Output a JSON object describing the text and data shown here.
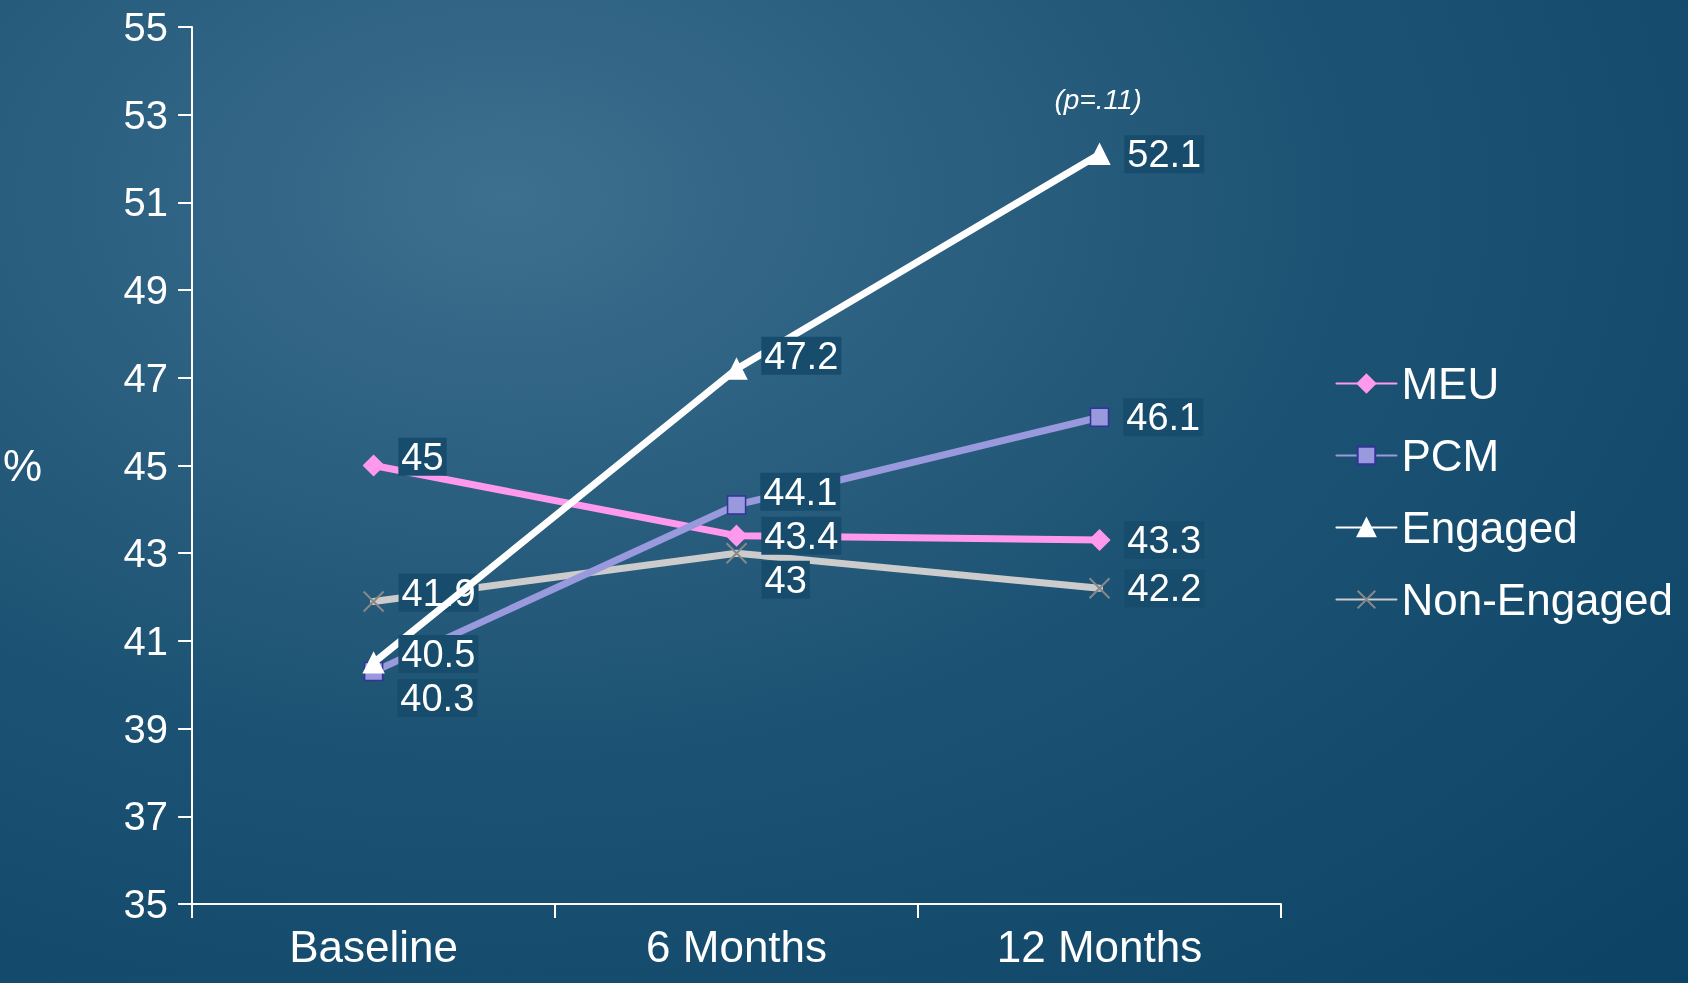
{
  "chart_data": {
    "type": "line",
    "ylabel": "%",
    "categories": [
      "Baseline",
      "6 Months",
      "12 Months"
    ],
    "series": [
      {
        "name": "MEU",
        "color": "#ff99ee",
        "marker": "diamond",
        "values": [
          45,
          43.4,
          43.3
        ]
      },
      {
        "name": "PCM",
        "color": "#9999dd",
        "marker": "square",
        "values": [
          40.3,
          44.1,
          46.1
        ]
      },
      {
        "name": "Engaged",
        "color": "#ffffff",
        "marker": "triangle",
        "values": [
          40.5,
          47.2,
          52.1
        ]
      },
      {
        "name": "Non-Engaged",
        "color": "#cccccc",
        "marker": "cross",
        "values": [
          41.9,
          43,
          42.2
        ]
      }
    ],
    "ylim": [
      35,
      55
    ],
    "yticks": [
      35,
      37,
      39,
      41,
      43,
      45,
      47,
      49,
      51,
      53,
      55
    ],
    "data_labels": true,
    "grid": false,
    "legend": "right",
    "annotations": [
      "(p=.11)"
    ]
  }
}
